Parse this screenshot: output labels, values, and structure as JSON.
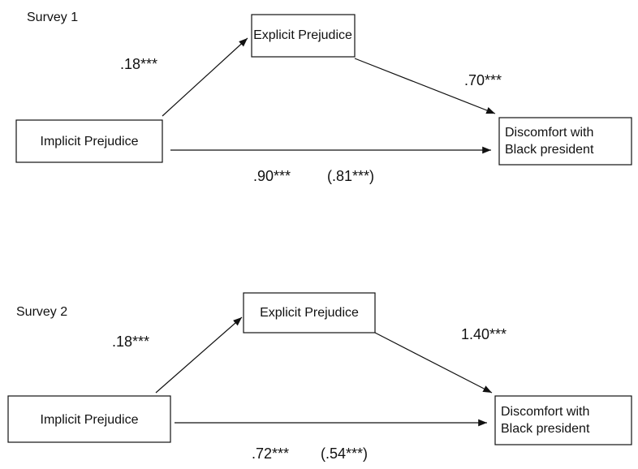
{
  "surveys": [
    {
      "label": "Survey 1",
      "implicit": "Implicit Prejudice",
      "explicit": "Explicit Prejudice",
      "outcome": [
        "Discomfort with",
        "Black president"
      ],
      "a": ".18***",
      "b": ".70***",
      "direct": ".90***",
      "controlled": "(.81***)"
    },
    {
      "label": "Survey 2",
      "implicit": "Implicit Prejudice",
      "explicit": "Explicit Prejudice",
      "outcome": [
        "Discomfort with",
        "Black president"
      ],
      "a": ".18***",
      "b": "1.40***",
      "direct": ".72***",
      "controlled": "(.54***)"
    }
  ]
}
